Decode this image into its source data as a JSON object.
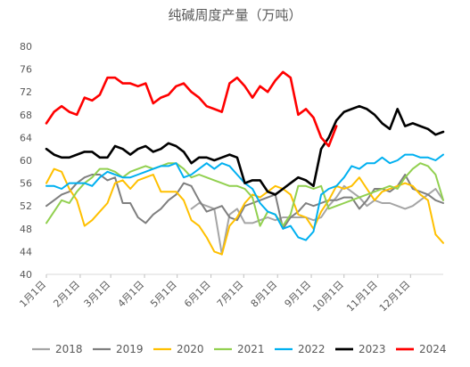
{
  "chart_data": {
    "type": "line",
    "title": "纯碱周度产量（万吨）",
    "xlabel": "",
    "ylabel": "",
    "ylim": [
      40,
      80
    ],
    "yticks": [
      40,
      44,
      48,
      52,
      56,
      60,
      64,
      68,
      72,
      76,
      80
    ],
    "x_domain_weeks": [
      0,
      52
    ],
    "xticks": [
      {
        "label": "1月1日",
        "week": 0.0
      },
      {
        "label": "2月1日",
        "week": 4.43
      },
      {
        "label": "3月1日",
        "week": 8.43
      },
      {
        "label": "4月1日",
        "week": 12.86
      },
      {
        "label": "5月1日",
        "week": 17.14
      },
      {
        "label": "6月1日",
        "week": 21.57
      },
      {
        "label": "7月1日",
        "week": 25.86
      },
      {
        "label": "8月1日",
        "week": 30.29
      },
      {
        "label": "9月1日",
        "week": 34.71
      },
      {
        "label": "10月1日",
        "week": 39.0
      },
      {
        "label": "11月1日",
        "week": 43.43
      },
      {
        "label": "12月1日",
        "week": 47.71
      }
    ],
    "grid": false,
    "legend_position": "bottom",
    "series": [
      {
        "name": "2018",
        "color": "#a5a5a5",
        "values": [
          null,
          null,
          null,
          null,
          null,
          null,
          null,
          null,
          null,
          null,
          null,
          null,
          null,
          null,
          null,
          null,
          null,
          null,
          null,
          51.5,
          52.5,
          52,
          51.5,
          43.5,
          50.5,
          51.5,
          49,
          49,
          49.5,
          50,
          49.5,
          50,
          50,
          50,
          50,
          49.5,
          50,
          52,
          53.5,
          55.5,
          54.5,
          53.5,
          52,
          53,
          52.5,
          52.5,
          52,
          51.5,
          52,
          53,
          54,
          55,
          53
        ]
      },
      {
        "name": "2019",
        "color": "#7f7f7f",
        "values": [
          52,
          53,
          54,
          54.5,
          56,
          57,
          57.5,
          57.5,
          56.5,
          57,
          52.5,
          52.5,
          50,
          49,
          50.5,
          51.5,
          53,
          54,
          56,
          55.5,
          53,
          51,
          51.5,
          52,
          50,
          49.5,
          52,
          52.5,
          53,
          53.5,
          54,
          48,
          50,
          51,
          52.5,
          52,
          52.5,
          53,
          53,
          53.5,
          53.5,
          51.5,
          53,
          55,
          55,
          54.5,
          55.5,
          57.5,
          55,
          54.5,
          54,
          53,
          52.5
        ]
      },
      {
        "name": "2020",
        "color": "#ffc000",
        "values": [
          56,
          58.5,
          58,
          55,
          53,
          48.5,
          49.5,
          51,
          52.5,
          56,
          56.5,
          55,
          56.5,
          57,
          57.5,
          54.5,
          54.5,
          54.5,
          53,
          49.5,
          48.5,
          46.5,
          44,
          43.5,
          48.5,
          50,
          52.5,
          54,
          53.5,
          54.5,
          55.5,
          55,
          54,
          50.5,
          50,
          48,
          51,
          53,
          55.5,
          55,
          55.5,
          57,
          55,
          53,
          54.5,
          55,
          55.5,
          56,
          55.5,
          54,
          53,
          47,
          45.5
        ]
      },
      {
        "name": "2021",
        "color": "#92d050",
        "values": [
          49,
          51,
          53,
          52.5,
          54.5,
          56,
          57,
          58.5,
          58.5,
          58,
          57,
          58,
          58.5,
          59,
          58.5,
          59,
          59.5,
          59.5,
          58.5,
          57,
          57.5,
          57,
          56.5,
          56,
          55.5,
          55.5,
          55,
          53.5,
          48.5,
          51,
          50.5,
          48.5,
          50.5,
          55.5,
          55.5,
          55,
          55.5,
          51.5,
          52,
          52.5,
          53,
          53.5,
          54,
          54.5,
          55,
          55.5,
          55,
          57,
          58.5,
          59.5,
          59,
          57.5,
          53
        ]
      },
      {
        "name": "2022",
        "color": "#00b0f0",
        "values": [
          55.5,
          55.5,
          55,
          56,
          56,
          56,
          55.5,
          57,
          58,
          57.5,
          57,
          57,
          57.5,
          58,
          58.5,
          59,
          59,
          59.5,
          57,
          57.5,
          58.5,
          59.5,
          58.5,
          59.5,
          59,
          57.5,
          56,
          55,
          52.5,
          51,
          50.5,
          48,
          48.5,
          46.5,
          46,
          47.5,
          54,
          55,
          55.5,
          57,
          59,
          58.5,
          59.5,
          59.5,
          60.5,
          59.5,
          60,
          61,
          61,
          60.5,
          60.5,
          60,
          61
        ]
      },
      {
        "name": "2023",
        "color": "#000000",
        "values": [
          62,
          61,
          60.5,
          60.5,
          61,
          61.5,
          61.5,
          60.5,
          60.5,
          62.5,
          62,
          61,
          62,
          62.5,
          61.5,
          62,
          63,
          62.5,
          61.5,
          59.5,
          60.5,
          60.5,
          60,
          60.5,
          61,
          60.5,
          56,
          56.5,
          56.5,
          54.5,
          54,
          55,
          56,
          57,
          56.5,
          55.5,
          62,
          64,
          67,
          68.5,
          69,
          69.5,
          69,
          68,
          66.5,
          65.5,
          69,
          66,
          66.5,
          66,
          65.5,
          64.5,
          65
        ]
      },
      {
        "name": "2024",
        "color": "#ff0000",
        "values": [
          66.5,
          68.5,
          69.5,
          68.5,
          68,
          71,
          70.5,
          71.5,
          74.5,
          74.5,
          73.5,
          73.5,
          73,
          73.5,
          70,
          71,
          71.5,
          73,
          73.5,
          72,
          71,
          69.5,
          69,
          68.5,
          73.5,
          74.5,
          73,
          71,
          73,
          72,
          74,
          75.5,
          74.5,
          68,
          69,
          67.5,
          64,
          62.5,
          66
        ]
      }
    ]
  }
}
